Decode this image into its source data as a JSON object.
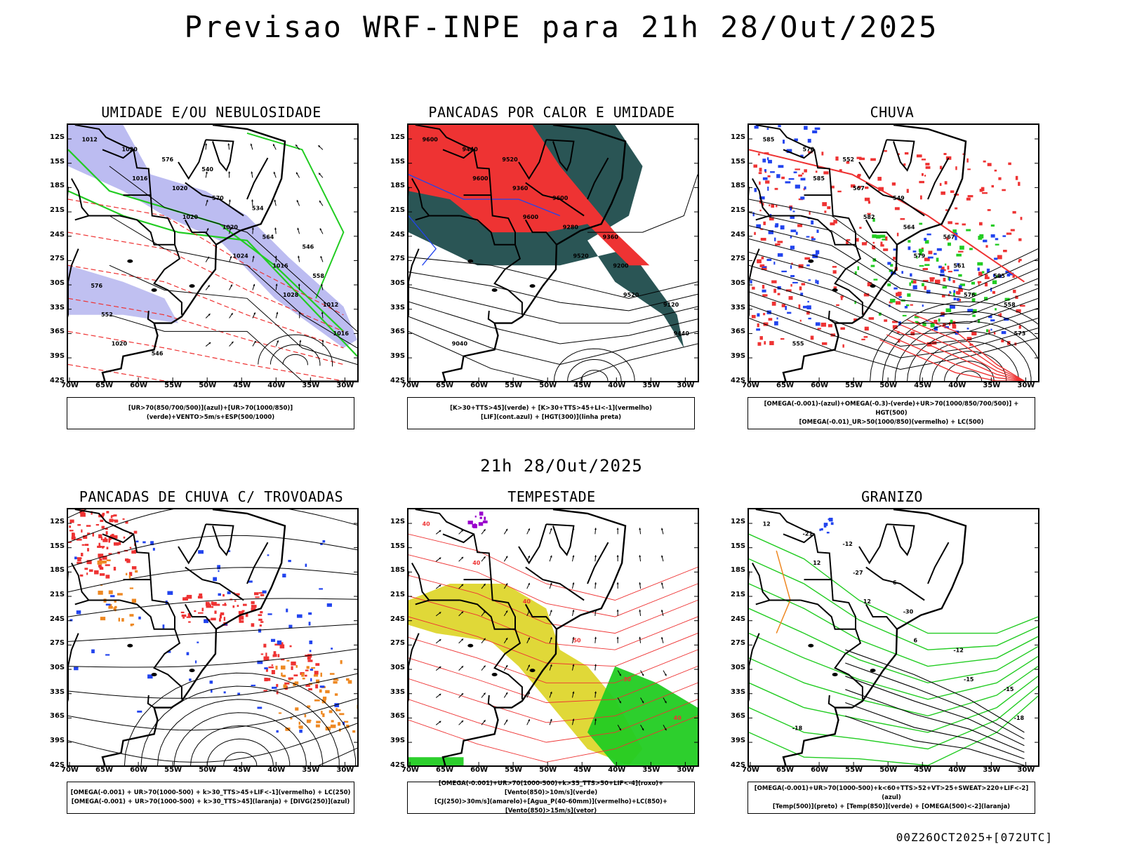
{
  "title": "Previsao WRF-INPE  para 21h 28/Out/2025",
  "subtitle": "21h 28/Out/2025",
  "footer": "00Z26OCT2025+[072UTC]",
  "lat_ticks": [
    "12S",
    "15S",
    "18S",
    "21S",
    "24S",
    "27S",
    "30S",
    "33S",
    "36S",
    "39S",
    "42S"
  ],
  "lon_ticks": [
    "70W",
    "65W",
    "60W",
    "55W",
    "50W",
    "45W",
    "40W",
    "35W",
    "30W"
  ],
  "colors": {
    "green": "#22cc22",
    "red": "#ee3333",
    "blue": "#2244ee",
    "lavender": "#b0b0ee",
    "darkteal": "#2a5555",
    "yellow": "#e0d838",
    "orange": "#ee8822",
    "purple": "#9900cc"
  },
  "panels": [
    {
      "title": "UMIDADE E/OU NEBULOSIDADE",
      "legend": [
        "[UR>70(850/700/500)](azul)+[UR>70(1000/850)](verde)+VENTO>5m/s+ESP(500/1000)"
      ],
      "contour_labels": [
        "1012",
        "1016",
        "1020",
        "1024",
        "1028",
        "1016",
        "1020",
        "1020",
        "1020",
        "1016",
        "1012",
        "1020",
        "576",
        "570",
        "564",
        "558",
        "552",
        "546",
        "540",
        "534",
        "546",
        "576"
      ]
    },
    {
      "title": "PANCADAS POR CALOR E UMIDADE",
      "legend": [
        "[K>30+TTS>45](verde) + [K>30+TTS>45+LI<-1](vermelho)",
        "[LIF](cont.azul) + [HGT(300)](linha preta)"
      ],
      "contour_labels": [
        "9600",
        "9600",
        "9600",
        "9520",
        "9520",
        "9440",
        "9440",
        "9360",
        "9280",
        "9200",
        "9120",
        "9040",
        "9520",
        "9600",
        "9360"
      ]
    },
    {
      "title": "CHUVA",
      "legend": [
        "[OMEGA(-0.001)-(azul)+OMEGA(-0.3)-(verde)+UR>70(1000/850/700/500)] + HGT(500)",
        "[OMEGA(-0.01)_UR>50(1000/850)(vermelho) + LC(500)"
      ],
      "contour_labels": [
        "585",
        "585",
        "582",
        "579",
        "576",
        "573",
        "570",
        "567",
        "564",
        "561",
        "558",
        "555",
        "552",
        "549",
        "567",
        "585"
      ]
    },
    {
      "title": "PANCADAS DE CHUVA C/ TROVOADAS",
      "legend": [
        "[OMEGA(-0.001) + UR>70(1000-500) + k>30_TTS>45+LIF<-1](vermelho) + LC(250)",
        "[OMEGA(-0.001) + UR>70(1000-500) + k>30_TTS>45](laranja) + [DIVG(250)](azul)"
      ],
      "contour_labels": []
    },
    {
      "title": "TEMPESTADE",
      "legend": [
        "[OMEGA(-0.001)+UR>70(1000-500)+k>35_TTS>50+LIF<-4](roxo)+[Vento(850)>10m/s](verde)",
        "[CJ(250)>30m/s](amarelo)+[Agua_P(40-60mm)](vermelho)+LC(850)+[Vento(850)>15m/s](vetor)"
      ],
      "contour_labels": [
        "40",
        "40",
        "40",
        "50",
        "30",
        "40"
      ]
    },
    {
      "title": "GRANIZO",
      "legend": [
        "[OMEGA(-0.001)+UR>70(1000-500)+k<60+TTS>52+VT>25+SWEAT>220+LIF<-2](azul)",
        "[Temp(500)](preto) + [Temp(850)](verde) + [OMEGA(500)<-2](laranja)"
      ],
      "contour_labels": [
        "12",
        "12",
        "12",
        "6",
        "-15",
        "-18",
        "-21",
        "-27",
        "-30",
        "-12",
        "-15",
        "-18",
        "-12",
        "6"
      ]
    }
  ]
}
